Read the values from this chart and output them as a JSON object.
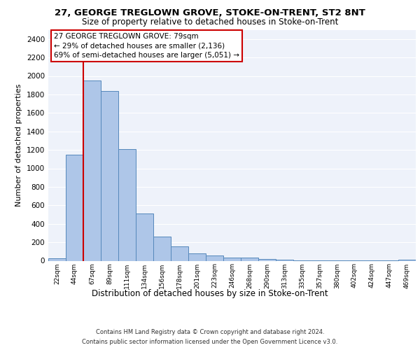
{
  "title": "27, GEORGE TREGLOWN GROVE, STOKE-ON-TRENT, ST2 8NT",
  "subtitle": "Size of property relative to detached houses in Stoke-on-Trent",
  "xlabel": "Distribution of detached houses by size in Stoke-on-Trent",
  "ylabel": "Number of detached properties",
  "footer_line1": "Contains HM Land Registry data © Crown copyright and database right 2024.",
  "footer_line2": "Contains public sector information licensed under the Open Government Licence v3.0.",
  "annotation_line1": "27 GEORGE TREGLOWN GROVE: 79sqm",
  "annotation_line2": "← 29% of detached houses are smaller (2,136)",
  "annotation_line3": "69% of semi-detached houses are larger (5,051) →",
  "bar_labels": [
    "22sqm",
    "44sqm",
    "67sqm",
    "89sqm",
    "111sqm",
    "134sqm",
    "156sqm",
    "178sqm",
    "201sqm",
    "223sqm",
    "246sqm",
    "268sqm",
    "290sqm",
    "313sqm",
    "335sqm",
    "357sqm",
    "380sqm",
    "402sqm",
    "424sqm",
    "447sqm",
    "469sqm"
  ],
  "bar_values": [
    25,
    1150,
    1950,
    1840,
    1210,
    510,
    260,
    155,
    80,
    55,
    35,
    35,
    20,
    8,
    5,
    5,
    3,
    3,
    5,
    3,
    15
  ],
  "bar_color": "#aec6e8",
  "bar_edge_color": "#5588bb",
  "vline_color": "#cc0000",
  "ylim": [
    0,
    2500
  ],
  "yticks": [
    0,
    200,
    400,
    600,
    800,
    1000,
    1200,
    1400,
    1600,
    1800,
    2000,
    2200,
    2400
  ],
  "background_color": "#eef2fa",
  "grid_color": "#ffffff",
  "annotation_box_color": "#cc0000",
  "title_fontsize": 9.5,
  "subtitle_fontsize": 8.5,
  "ylabel_fontsize": 8,
  "xlabel_fontsize": 8.5,
  "tick_fontsize": 6.5,
  "ytick_fontsize": 7.5,
  "annotation_fontsize": 7.5,
  "footer_fontsize": 6
}
